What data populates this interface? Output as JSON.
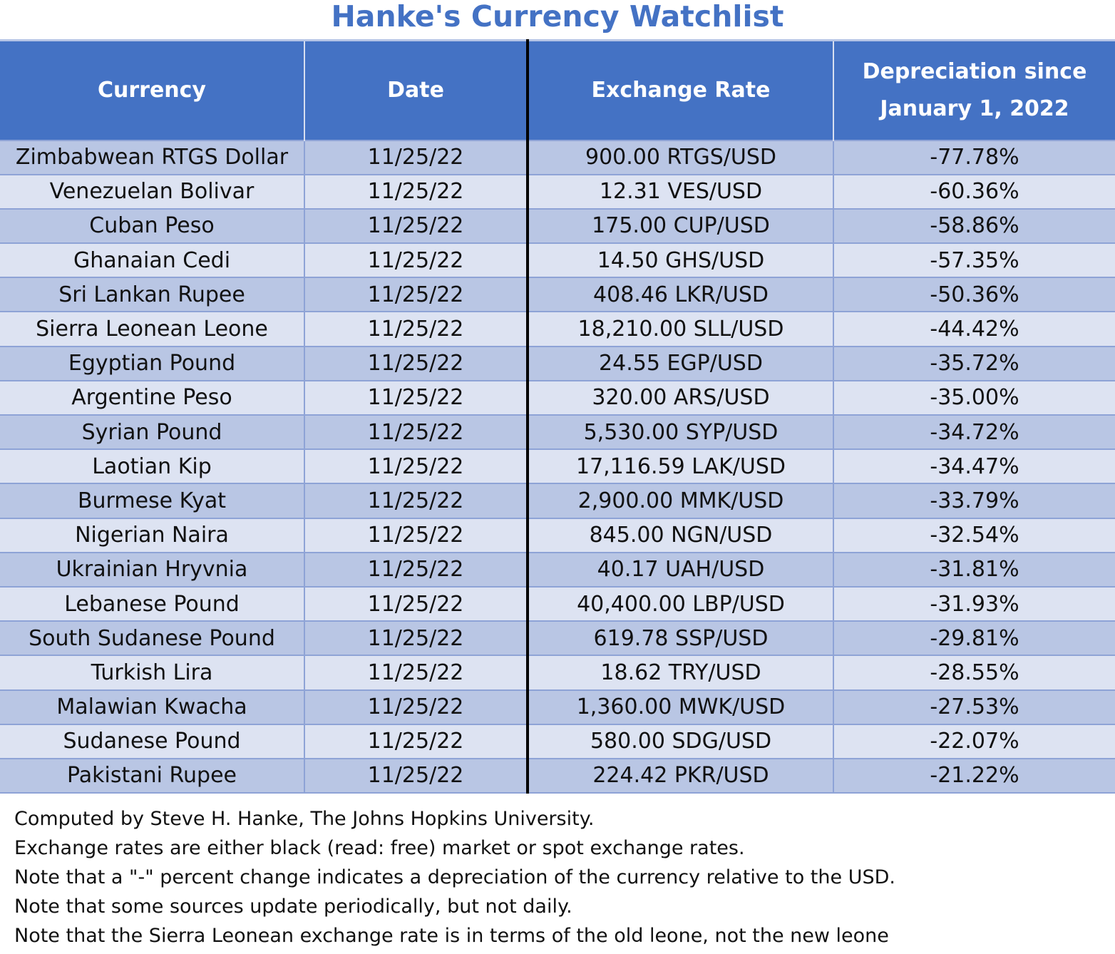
{
  "title": "Hanke's Currency Watchlist",
  "colors": {
    "header_bg": "#4472c4",
    "title": "#4472c4",
    "row_dark": "#b9c6e4",
    "row_light": "#dde3f2"
  },
  "chart_data": {
    "type": "table",
    "title": "Hanke's Currency Watchlist",
    "columns": [
      "Currency",
      "Date",
      "Exchange Rate",
      "Depreciation since January 1, 2022"
    ],
    "rows": [
      [
        "Zimbabwean RTGS Dollar",
        "11/25/22",
        "900.00 RTGS/USD",
        "-77.78%"
      ],
      [
        "Venezuelan Bolivar",
        "11/25/22",
        "12.31 VES/USD",
        "-60.36%"
      ],
      [
        "Cuban Peso",
        "11/25/22",
        "175.00 CUP/USD",
        "-58.86%"
      ],
      [
        "Ghanaian Cedi",
        "11/25/22",
        "14.50 GHS/USD",
        "-57.35%"
      ],
      [
        "Sri Lankan Rupee",
        "11/25/22",
        "408.46 LKR/USD",
        "-50.36%"
      ],
      [
        "Sierra Leonean Leone",
        "11/25/22",
        "18,210.00 SLL/USD",
        "-44.42%"
      ],
      [
        "Egyptian Pound",
        "11/25/22",
        "24.55 EGP/USD",
        "-35.72%"
      ],
      [
        "Argentine Peso",
        "11/25/22",
        "320.00 ARS/USD",
        "-35.00%"
      ],
      [
        "Syrian Pound",
        "11/25/22",
        "5,530.00 SYP/USD",
        "-34.72%"
      ],
      [
        "Laotian Kip",
        "11/25/22",
        "17,116.59 LAK/USD",
        "-34.47%"
      ],
      [
        "Burmese Kyat",
        "11/25/22",
        "2,900.00 MMK/USD",
        "-33.79%"
      ],
      [
        "Nigerian Naira",
        "11/25/22",
        "845.00 NGN/USD",
        "-32.54%"
      ],
      [
        "Ukrainian Hryvnia",
        "11/25/22",
        "40.17 UAH/USD",
        "-31.81%"
      ],
      [
        "Lebanese Pound",
        "11/25/22",
        "40,400.00 LBP/USD",
        "-31.93%"
      ],
      [
        "South Sudanese Pound",
        "11/25/22",
        "619.78 SSP/USD",
        "-29.81%"
      ],
      [
        "Turkish Lira",
        "11/25/22",
        "18.62 TRY/USD",
        "-28.55%"
      ],
      [
        "Malawian Kwacha",
        "11/25/22",
        "1,360.00 MWK/USD",
        "-27.53%"
      ],
      [
        "Sudanese Pound",
        "11/25/22",
        "580.00 SDG/USD",
        "-22.07%"
      ],
      [
        "Pakistani Rupee",
        "11/25/22",
        "224.42 PKR/USD",
        "-21.22%"
      ]
    ]
  },
  "headers": {
    "currency": "Currency",
    "date": "Date",
    "rate": "Exchange Rate",
    "depreciation_line1": "Depreciation since",
    "depreciation_line2": "January 1, 2022"
  },
  "notes": [
    "Computed by Steve H. Hanke, The Johns Hopkins University.",
    "Exchange rates are either black (read: free) market or spot exchange rates.",
    "Note that a \"-\" percent change indicates a depreciation of the currency relative to the USD.",
    "Note that some sources update periodically, but not daily.",
    "Note that the Sierra Leonean exchange rate is in terms of the old leone, not the new leone"
  ]
}
